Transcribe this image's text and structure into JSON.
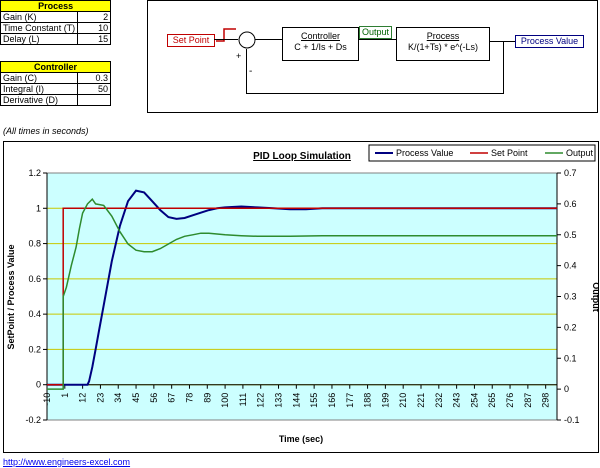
{
  "process_table": {
    "header": "Process",
    "rows": [
      {
        "label": "Gain (K)",
        "value": "2"
      },
      {
        "label": "Time Constant (T)",
        "value": "10"
      },
      {
        "label": "Delay (L)",
        "value": "15"
      }
    ]
  },
  "controller_table": {
    "header": "Controller",
    "rows": [
      {
        "label": "Gain (C)",
        "value": "0.3"
      },
      {
        "label": "Integral (I)",
        "value": "50"
      },
      {
        "label": "Derivative (D)",
        "value": ""
      }
    ]
  },
  "diagram": {
    "set_point": "Set Point",
    "controller_title": "Controller",
    "controller_formula": "C + 1/Is + Ds",
    "output": "Output",
    "process_title": "Process",
    "process_formula": "K/(1+Ts) * e^(-Ls)",
    "process_value": "Process Value",
    "plus": "+",
    "minus": "-"
  },
  "note": "(All times in seconds)",
  "footer_link": "http://www.engineers-excel.com",
  "colors": {
    "process_value": "#000080",
    "set_point": "#c00000",
    "output": "#2e8b2e",
    "plot_background": "#ccffff",
    "gridline": "#c8c800"
  },
  "chart_data": {
    "type": "line",
    "title": "PID Loop Simulation",
    "xlabel": "Time (sec)",
    "ylabel": "SetPoint / Process Value",
    "y2label": "Output",
    "x_tick_labels": [
      "-10",
      "1",
      "12",
      "23",
      "34",
      "45",
      "56",
      "67",
      "78",
      "89",
      "100",
      "111",
      "122",
      "133",
      "144",
      "155",
      "166",
      "177",
      "188",
      "199",
      "210",
      "221",
      "232",
      "243",
      "254",
      "265",
      "276",
      "287",
      "298"
    ],
    "xlim": [
      -10,
      305
    ],
    "ylim": [
      -0.2,
      1.2
    ],
    "y_ticks": [
      "-0.2",
      "0",
      "0.2",
      "0.4",
      "0.6",
      "0.8",
      "1",
      "1.2"
    ],
    "y2lim": [
      -0.1,
      0.7
    ],
    "y2_ticks": [
      "-0.1",
      "0",
      "0.1",
      "0.2",
      "0.3",
      "0.4",
      "0.5",
      "0.6",
      "0.7"
    ],
    "grid": true,
    "legend_position": "top-right",
    "series": [
      {
        "name": "Process Value",
        "axis": "left",
        "x": [
          -10,
          0,
          5,
          10,
          15,
          16,
          18,
          20,
          22,
          25,
          30,
          35,
          40,
          45,
          50,
          55,
          60,
          65,
          70,
          75,
          80,
          85,
          90,
          95,
          100,
          110,
          120,
          130,
          140,
          150,
          160,
          180,
          200,
          250,
          305
        ],
        "y": [
          0,
          0,
          0,
          0,
          0,
          0.02,
          0.1,
          0.2,
          0.3,
          0.45,
          0.7,
          0.9,
          1.04,
          1.1,
          1.09,
          1.04,
          0.99,
          0.95,
          0.94,
          0.945,
          0.96,
          0.975,
          0.99,
          1.0,
          1.005,
          1.01,
          1.005,
          1.0,
          0.995,
          0.995,
          1.0,
          1.0,
          1.0,
          1.0,
          1.0
        ]
      },
      {
        "name": "Set Point",
        "axis": "left",
        "x": [
          -10,
          0,
          0,
          305
        ],
        "y": [
          0,
          0,
          1,
          1
        ]
      },
      {
        "name": "Output",
        "axis": "right",
        "x": [
          -10,
          0,
          0,
          2,
          5,
          8,
          10,
          12,
          15,
          18,
          20,
          25,
          30,
          35,
          40,
          45,
          50,
          55,
          60,
          65,
          70,
          75,
          80,
          85,
          90,
          100,
          110,
          120,
          140,
          160,
          200,
          250,
          305
        ],
        "y": [
          0,
          0,
          0.3,
          0.33,
          0.4,
          0.46,
          0.52,
          0.57,
          0.6,
          0.615,
          0.6,
          0.595,
          0.56,
          0.51,
          0.47,
          0.45,
          0.445,
          0.445,
          0.455,
          0.47,
          0.485,
          0.495,
          0.5,
          0.505,
          0.505,
          0.5,
          0.497,
          0.495,
          0.495,
          0.497,
          0.497,
          0.497,
          0.497
        ]
      }
    ]
  }
}
